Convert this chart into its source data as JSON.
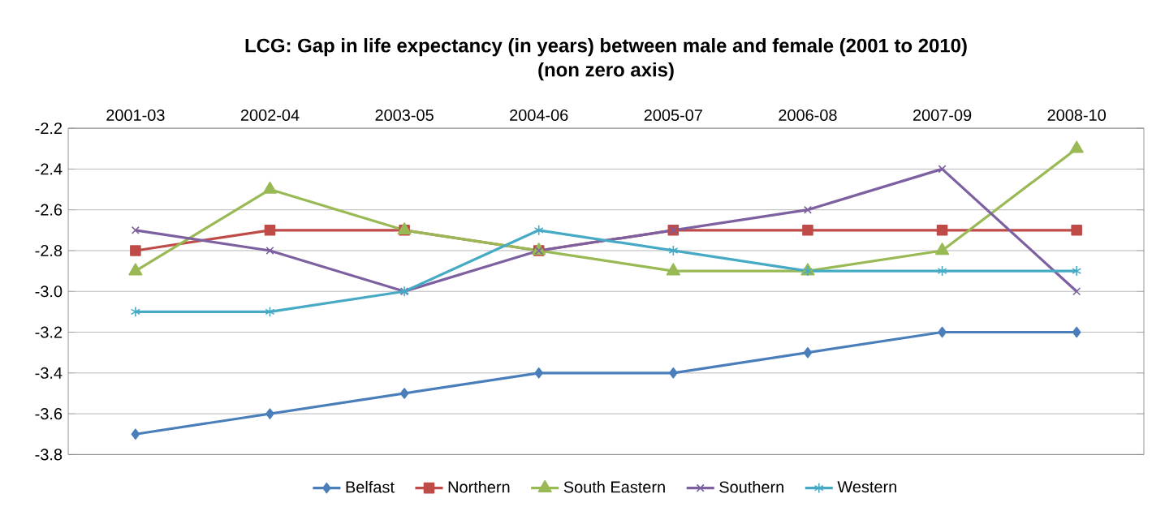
{
  "chart_data": {
    "type": "line",
    "title": "LCG: Gap in life expectancy (in years) between male and female (2001 to 2010)",
    "subtitle": "(non zero axis)",
    "categories": [
      "2001-03",
      "2002-04",
      "2003-05",
      "2004-06",
      "2005-07",
      "2006-08",
      "2007-09",
      "2008-10"
    ],
    "series": [
      {
        "name": "Belfast",
        "color": "#4a7ebb",
        "marker": "diamond",
        "values": [
          -3.7,
          -3.6,
          -3.5,
          -3.4,
          -3.4,
          -3.3,
          -3.2,
          -3.2
        ]
      },
      {
        "name": "Northern",
        "color": "#be4b48",
        "marker": "square",
        "values": [
          -2.8,
          -2.7,
          -2.7,
          -2.8,
          -2.7,
          -2.7,
          -2.7,
          -2.7
        ]
      },
      {
        "name": "South Eastern",
        "color": "#98b954",
        "marker": "triangle",
        "values": [
          -2.9,
          -2.5,
          -2.7,
          -2.8,
          -2.9,
          -2.9,
          -2.8,
          -2.3
        ]
      },
      {
        "name": "Southern",
        "color": "#7d60a0",
        "marker": "cross",
        "values": [
          -2.7,
          -2.8,
          -3.0,
          -2.8,
          -2.7,
          -2.6,
          -2.4,
          -3.0
        ]
      },
      {
        "name": "Western",
        "color": "#46aac5",
        "marker": "cross",
        "values": [
          -3.1,
          -3.1,
          -3.0,
          -2.7,
          -2.8,
          -2.9,
          -2.9,
          -2.9
        ]
      }
    ],
    "ylim": [
      -3.8,
      -2.2
    ],
    "yticks": [
      {
        "value": -3.8,
        "label": "-3.8"
      },
      {
        "value": -3.6,
        "label": "-3.6"
      },
      {
        "value": -3.4,
        "label": "-3.4"
      },
      {
        "value": -3.2,
        "label": "-3.2"
      },
      {
        "value": -3.0,
        "label": "-3.0"
      },
      {
        "value": -2.8,
        "label": "-2.8"
      },
      {
        "value": -2.6,
        "label": "-2.6"
      },
      {
        "value": -2.4,
        "label": "-2.4"
      },
      {
        "value": -2.2,
        "label": "-2.2"
      }
    ],
    "grid": "y",
    "legend": "bottom"
  }
}
